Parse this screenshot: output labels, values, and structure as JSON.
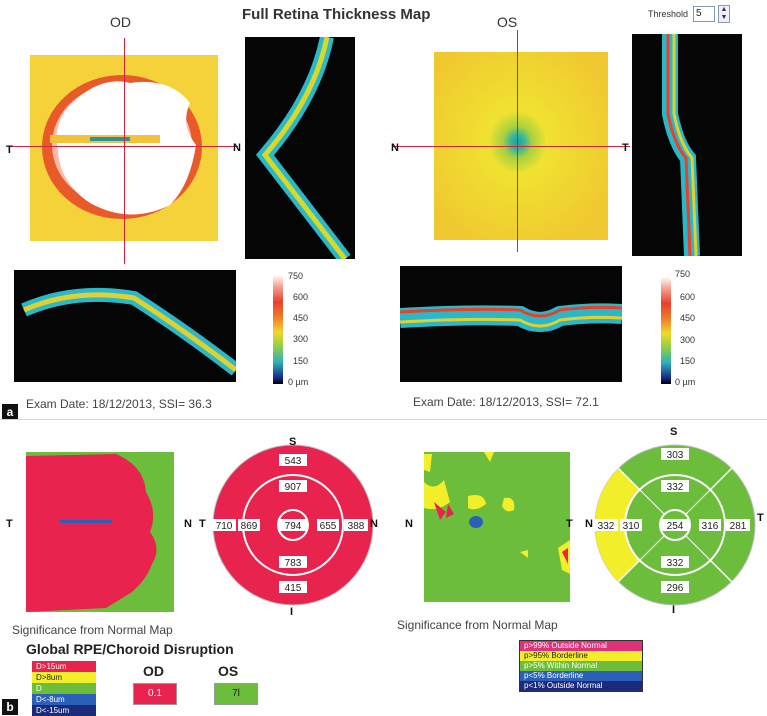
{
  "title": "Full Retina Thickness Map",
  "threshold": {
    "label": "Threshold",
    "value": "5"
  },
  "eyes": {
    "od": {
      "label": "OD",
      "exam": "Exam Date: 18/12/2013, SSI= 36.3"
    },
    "os": {
      "label": "OS",
      "exam": "Exam Date: 18/12/2013, SSI= 72.1"
    }
  },
  "axis": {
    "t": "T",
    "n": "N",
    "s": "S",
    "i": "I"
  },
  "scale_ticks": [
    "750",
    "600",
    "450",
    "300",
    "150",
    "0 µm"
  ],
  "panel_tags": {
    "a": "a",
    "b": "b"
  },
  "sig_caption": "Significance from Normal Map",
  "od_grid": {
    "center": "794",
    "inner_s": "907",
    "inner_t": "869",
    "inner_n": "655",
    "inner_i": "783",
    "outer_s": "543",
    "outer_t": "710",
    "outer_n": "388",
    "outer_i": "415"
  },
  "os_grid": {
    "center": "254",
    "inner_s": "332",
    "inner_n": "310",
    "inner_t": "316",
    "inner_i": "332",
    "outer_s": "303",
    "outer_n": "332",
    "outer_t": "281",
    "outer_i": "296"
  },
  "norm_legend": [
    "p>99% Outside Normal",
    "p>95% Borderline",
    "p>5% Within Normal",
    "p<5% Borderline",
    "p<1% Outside Normal"
  ],
  "rpe": {
    "title": "Global RPE/Choroid Disruption",
    "legend": [
      "D>15um",
      "D>8um",
      "D",
      "D<-8um",
      "D<-15um"
    ],
    "od_label": "OD",
    "os_label": "OS",
    "od_value": "0.1",
    "os_value": "7l"
  },
  "colors": {
    "red": "#e8244e",
    "green": "#6cbd3c",
    "yellow": "#f2ee2a",
    "blue": "#2c5fb8",
    "navy": "#1c2a7a",
    "pink": "#e0307a"
  }
}
